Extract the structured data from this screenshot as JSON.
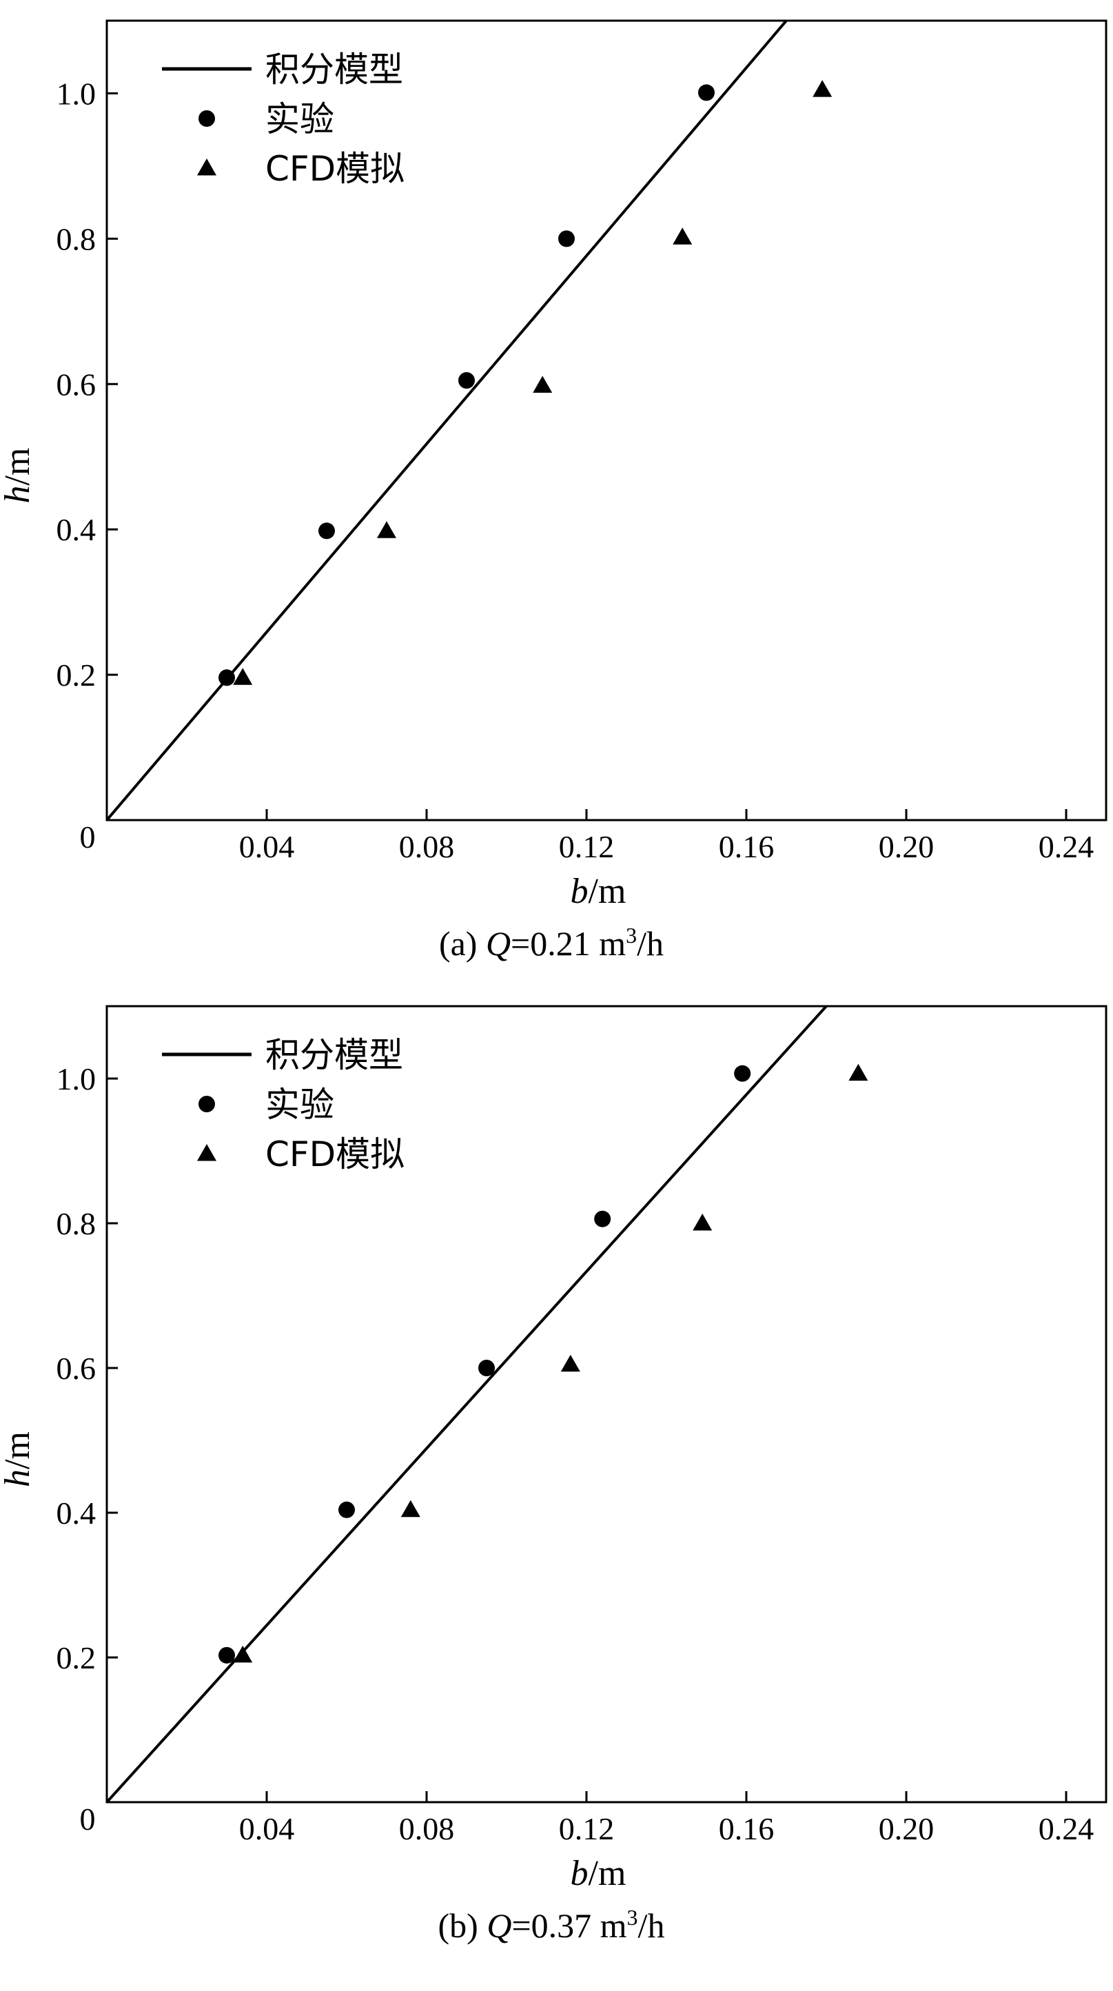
{
  "chart_data": [
    {
      "type": "scatter",
      "panel": "a",
      "caption_prefix": "(a)",
      "caption_var": "Q",
      "caption_value": "=0.21 m",
      "caption_sup": "3",
      "caption_unit": "/h",
      "xlabel_var": "b",
      "xlabel_unit": "/m",
      "ylabel_var": "h",
      "ylabel_unit": "/m",
      "xlim": [
        0,
        0.25
      ],
      "ylim": [
        0,
        1.1
      ],
      "xticks": [
        0.04,
        0.08,
        0.12,
        0.16,
        0.2,
        0.24
      ],
      "xtick_labels": [
        "0.04",
        "0.08",
        "0.12",
        "0.16",
        "0.20",
        "0.24"
      ],
      "yticks": [
        0.2,
        0.4,
        0.6,
        0.8,
        1.0
      ],
      "ytick_labels": [
        "0.2",
        "0.4",
        "0.6",
        "0.8",
        "1.0"
      ],
      "origin_label": "0",
      "grid": false,
      "legend_position": "top-left",
      "series": [
        {
          "name": "积分模型",
          "kind": "line",
          "x": [
            0,
            0.17
          ],
          "y": [
            0,
            1.1
          ]
        },
        {
          "name": "实验",
          "kind": "circle",
          "x": [
            0.03,
            0.055,
            0.09,
            0.115,
            0.15
          ],
          "y": [
            0.196,
            0.398,
            0.605,
            0.8,
            1.001
          ]
        },
        {
          "name": "CFD模拟",
          "kind": "triangle",
          "x": [
            0.034,
            0.07,
            0.109,
            0.144,
            0.179
          ],
          "y": [
            0.196,
            0.398,
            0.598,
            0.802,
            1.005
          ]
        }
      ]
    },
    {
      "type": "scatter",
      "panel": "b",
      "caption_prefix": "(b)",
      "caption_var": "Q",
      "caption_value": "=0.37 m",
      "caption_sup": "3",
      "caption_unit": "/h",
      "xlabel_var": "b",
      "xlabel_unit": "/m",
      "ylabel_var": "h",
      "ylabel_unit": "/m",
      "xlim": [
        0,
        0.25
      ],
      "ylim": [
        0,
        1.1
      ],
      "xticks": [
        0.04,
        0.08,
        0.12,
        0.16,
        0.2,
        0.24
      ],
      "xtick_labels": [
        "0.04",
        "0.08",
        "0.12",
        "0.16",
        "0.20",
        "0.24"
      ],
      "yticks": [
        0.2,
        0.4,
        0.6,
        0.8,
        1.0
      ],
      "ytick_labels": [
        "0.2",
        "0.4",
        "0.6",
        "0.8",
        "1.0"
      ],
      "origin_label": "0",
      "grid": false,
      "legend_position": "top-left",
      "series": [
        {
          "name": "积分模型",
          "kind": "line",
          "x": [
            0,
            0.18
          ],
          "y": [
            0,
            1.1
          ]
        },
        {
          "name": "实验",
          "kind": "circle",
          "x": [
            0.03,
            0.06,
            0.095,
            0.124,
            0.159
          ],
          "y": [
            0.203,
            0.404,
            0.6,
            0.806,
            1.007
          ]
        },
        {
          "name": "CFD模拟",
          "kind": "triangle",
          "x": [
            0.034,
            0.076,
            0.116,
            0.149,
            0.188
          ],
          "y": [
            0.203,
            0.404,
            0.605,
            0.8,
            1.007
          ]
        }
      ]
    }
  ]
}
